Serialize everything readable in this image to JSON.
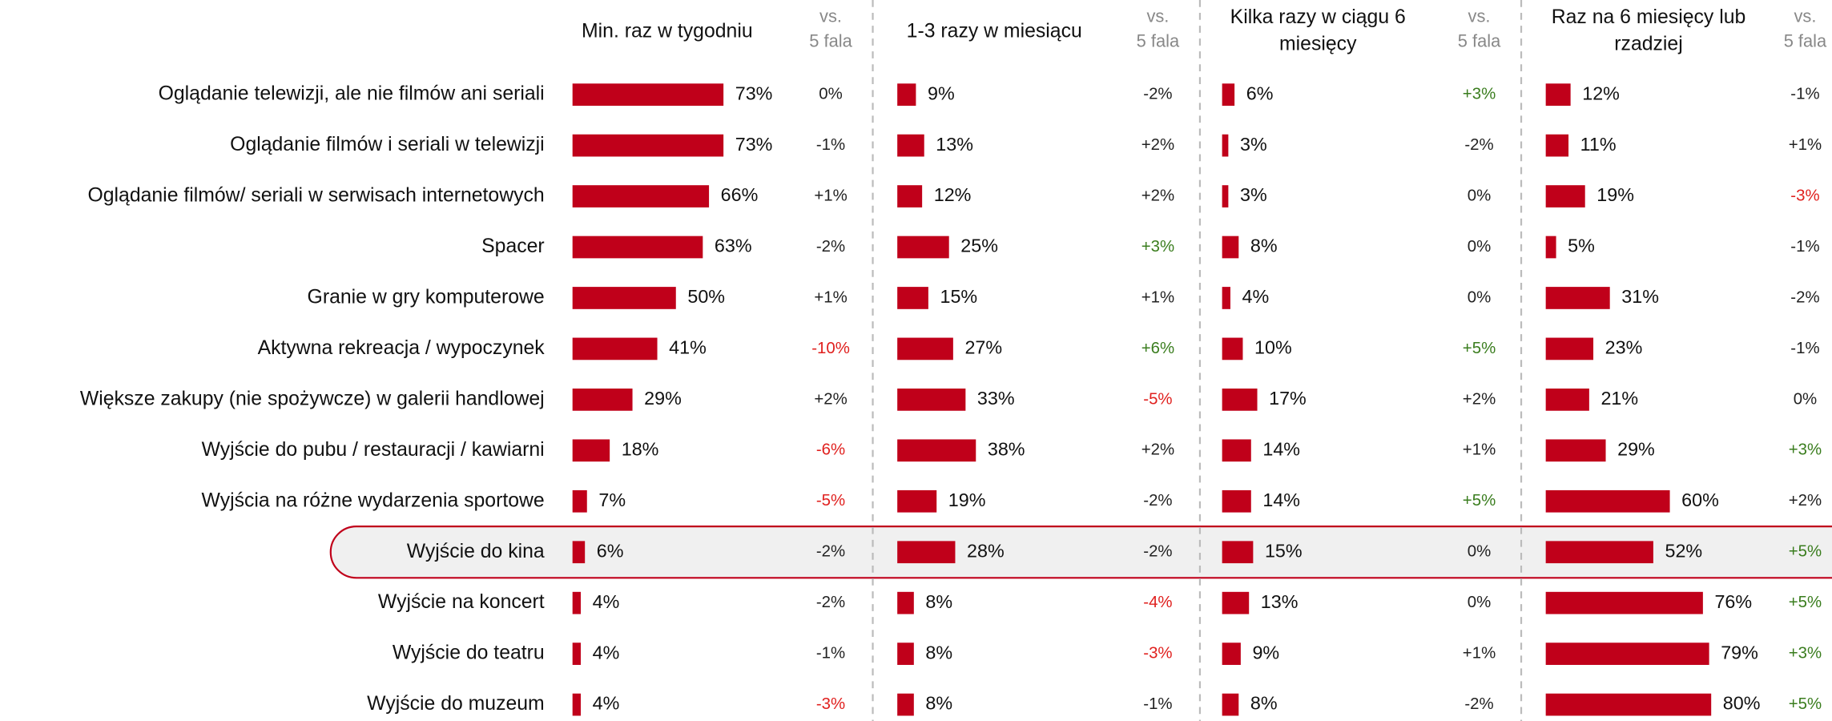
{
  "chart_data": {
    "type": "bar",
    "categories": [
      "Oglądanie telewizji, ale nie filmów ani seriali",
      "Oglądanie filmów i seriali w telewizji",
      "Oglądanie filmów/ seriali w serwisach internetowych",
      "Spacer",
      "Granie w gry komputerowe",
      "Aktywna rekreacja / wypoczynek",
      "Większe zakupy (nie spożywcze) w galerii handlowej",
      "Wyjście do pubu / restauracji / kawiarni",
      "Wyjścia na różne wydarzenia sportowe",
      "Wyjście do kina",
      "Wyjście na koncert",
      "Wyjście do teatru",
      "Wyjście do muzeum"
    ],
    "highlight": 9,
    "change_header": [
      "vs.",
      "5 fala"
    ],
    "series": [
      {
        "name": "Min. raz w tygodniu",
        "color": "#c0001a",
        "values": [
          73,
          73,
          66,
          63,
          50,
          41,
          29,
          18,
          7,
          6,
          4,
          4,
          4
        ],
        "value_labels": [
          "73%",
          "73%",
          "66%",
          "63%",
          "50%",
          "41%",
          "29%",
          "18%",
          "7%",
          "6%",
          "4%",
          "4%",
          "4%"
        ],
        "changes": [
          0,
          -1,
          1,
          -2,
          1,
          -10,
          2,
          -6,
          -5,
          -2,
          -2,
          -1,
          -3
        ],
        "change_labels": [
          "0%",
          "-1%",
          "+1%",
          "-2%",
          "+1%",
          "-10%",
          "+2%",
          "-6%",
          "-5%",
          "-2%",
          "-2%",
          "-1%",
          "-3%"
        ],
        "change_colors": [
          "#222",
          "#222",
          "#222",
          "#222",
          "#222",
          "#e0201e",
          "#222",
          "#e0201e",
          "#e0201e",
          "#222",
          "#222",
          "#222",
          "#e0201e"
        ]
      },
      {
        "name": "1-3 razy w miesiącu",
        "color": "#c0001a",
        "values": [
          9,
          13,
          12,
          25,
          15,
          27,
          33,
          38,
          19,
          28,
          8,
          8,
          8
        ],
        "value_labels": [
          "9%",
          "13%",
          "12%",
          "25%",
          "15%",
          "27%",
          "33%",
          "38%",
          "19%",
          "28%",
          "8%",
          "8%",
          "8%"
        ],
        "changes": [
          -2,
          2,
          2,
          3,
          1,
          6,
          -5,
          2,
          -2,
          -2,
          -4,
          -3,
          -1
        ],
        "change_labels": [
          "-2%",
          "+2%",
          "+2%",
          "+3%",
          "+1%",
          "+6%",
          "-5%",
          "+2%",
          "-2%",
          "-2%",
          "-4%",
          "-3%",
          "-1%"
        ],
        "change_colors": [
          "#222",
          "#222",
          "#222",
          "#3a7d1e",
          "#222",
          "#3a7d1e",
          "#e0201e",
          "#222",
          "#222",
          "#222",
          "#e0201e",
          "#e0201e",
          "#222"
        ]
      },
      {
        "name": "Kilka razy w ciągu 6 miesięcy",
        "color": "#c0001a",
        "values": [
          6,
          3,
          3,
          8,
          4,
          10,
          17,
          14,
          14,
          15,
          13,
          9,
          8
        ],
        "value_labels": [
          "6%",
          "3%",
          "3%",
          "8%",
          "4%",
          "10%",
          "17%",
          "14%",
          "14%",
          "15%",
          "13%",
          "9%",
          "8%"
        ],
        "changes": [
          3,
          -2,
          0,
          0,
          0,
          5,
          2,
          1,
          5,
          0,
          0,
          1,
          -2
        ],
        "change_labels": [
          "+3%",
          "-2%",
          "0%",
          "0%",
          "0%",
          "+5%",
          "+2%",
          "+1%",
          "+5%",
          "0%",
          "0%",
          "+1%",
          "-2%"
        ],
        "change_colors": [
          "#3a7d1e",
          "#222",
          "#222",
          "#222",
          "#222",
          "#3a7d1e",
          "#222",
          "#222",
          "#3a7d1e",
          "#222",
          "#222",
          "#222",
          "#222"
        ]
      },
      {
        "name": "Raz na 6 miesięcy lub rzadziej",
        "color": "#c0001a",
        "values": [
          12,
          11,
          19,
          5,
          31,
          23,
          21,
          29,
          60,
          52,
          76,
          79,
          80
        ],
        "value_labels": [
          "12%",
          "11%",
          "19%",
          "5%",
          "31%",
          "23%",
          "21%",
          "29%",
          "60%",
          "52%",
          "76%",
          "79%",
          "80%"
        ],
        "changes": [
          -1,
          1,
          -3,
          -1,
          -2,
          -1,
          0,
          3,
          2,
          5,
          5,
          3,
          5
        ],
        "change_labels": [
          "-1%",
          "+1%",
          "-3%",
          "-1%",
          "-2%",
          "-1%",
          "0%",
          "+3%",
          "+2%",
          "+5%",
          "+5%",
          "+3%",
          "+5%"
        ],
        "change_colors": [
          "#222",
          "#222",
          "#e0201e",
          "#222",
          "#222",
          "#222",
          "#222",
          "#3a7d1e",
          "#222",
          "#3a7d1e",
          "#3a7d1e",
          "#3a7d1e",
          "#3a7d1e"
        ]
      }
    ]
  }
}
